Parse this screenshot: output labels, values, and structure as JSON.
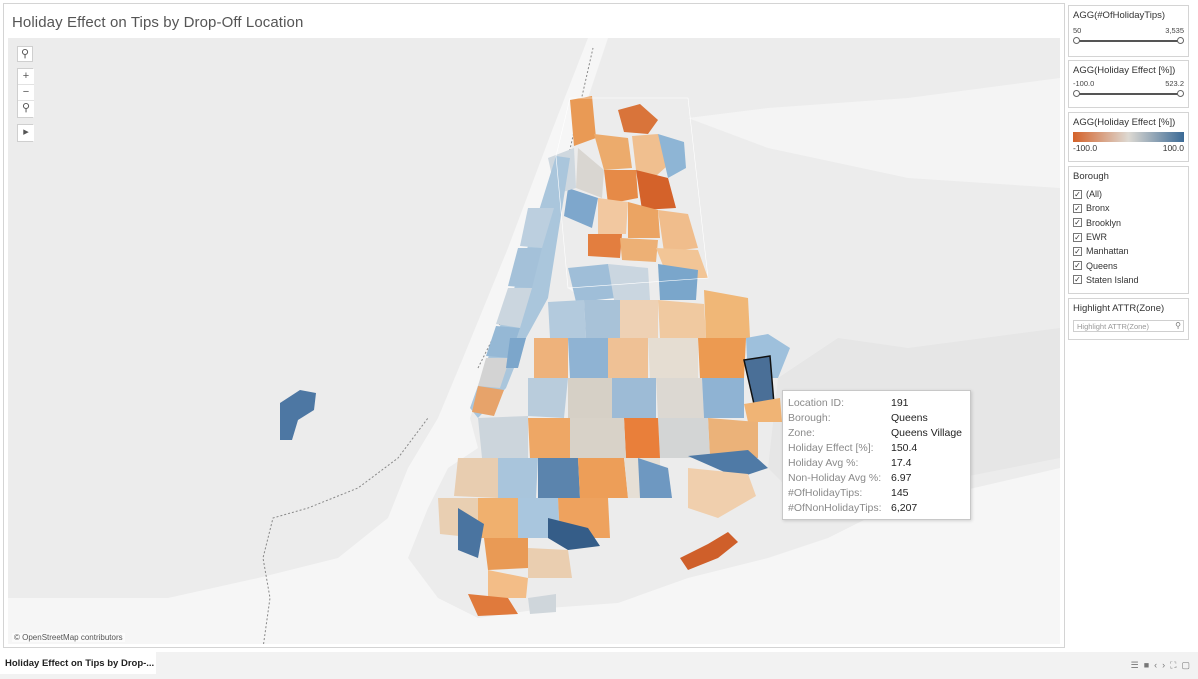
{
  "title": "Holiday Effect on Tips by Drop-Off Location",
  "map": {
    "attribution": "© OpenStreetMap contributors",
    "tools": {
      "search_icon": "search-icon",
      "zoom_in": "+",
      "zoom_out": "−",
      "pin": "⚲",
      "expand": "▸"
    }
  },
  "tooltip": {
    "rows": [
      {
        "label": "Location ID:",
        "value": "191"
      },
      {
        "label": "Borough:",
        "value": "Queens"
      },
      {
        "label": "Zone:",
        "value": "Queens Village"
      },
      {
        "label": "Holiday Effect [%]:",
        "value": "150.4"
      },
      {
        "label": "Holiday Avg %:",
        "value": "17.4"
      },
      {
        "label": "Non-Holiday Avg %:",
        "value": "6.97"
      },
      {
        "label": "#OfHolidayTips:",
        "value": "145"
      },
      {
        "label": "#OfNonHolidayTips:",
        "value": "6,207"
      }
    ]
  },
  "filters": {
    "holiday_tips": {
      "title": "AGG(#OfHolidayTips)",
      "min": "50",
      "max": "3,535"
    },
    "holiday_effect": {
      "title": "AGG(Holiday Effect [%])",
      "min": "-100.0",
      "max": "523.2"
    }
  },
  "legend": {
    "title": "AGG(Holiday Effect [%])",
    "min": "-100.0",
    "max": "100.0",
    "color_low": "#d4622a",
    "color_mid": "#ddd9d2",
    "color_high": "#3b6a96"
  },
  "borough": {
    "title": "Borough",
    "items": [
      "(All)",
      "Bronx",
      "Brooklyn",
      "EWR",
      "Manhattan",
      "Queens",
      "Staten Island"
    ]
  },
  "highlight": {
    "title": "Highlight ATTR(Zone)",
    "placeholder": "Highlight ATTR(Zone)"
  },
  "bottom": {
    "tab_label": "Holiday Effect on Tips by Drop-..."
  }
}
